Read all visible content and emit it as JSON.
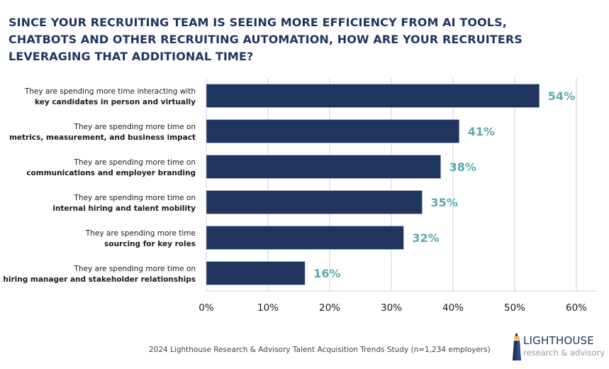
{
  "chart_data": {
    "type": "bar",
    "orientation": "horizontal",
    "title": "SINCE YOUR RECRUITING TEAM IS SEEING MORE EFFICIENCY FROM AI TOOLS, CHATBOTS AND OTHER RECRUITING AUTOMATION, HOW ARE YOUR RECRUITERS LEVERAGING THAT ADDITIONAL TIME?",
    "title_lines": [
      "SINCE YOUR RECRUITING TEAM IS SEEING MORE EFFICIENCY FROM AI TOOLS,",
      "CHATBOTS AND OTHER RECRUITING AUTOMATION, HOW ARE YOUR RECRUITERS",
      "LEVERAGING THAT ADDITIONAL TIME?"
    ],
    "categories": [
      {
        "line1": "They are spending more time interacting with",
        "line2": "key candidates in person and virtually"
      },
      {
        "line1": "They are spending more time on",
        "line2": "metrics, measurement, and business impact"
      },
      {
        "line1": "They are spending more time on",
        "line2": "communications and employer branding"
      },
      {
        "line1": "They are spending more time on",
        "line2": "internal hiring and talent mobility"
      },
      {
        "line1": "They are spending more time",
        "line2": "sourcing for key roles"
      },
      {
        "line1": "They are spending more time on",
        "line2": "hiring manager and stakeholder relationships"
      }
    ],
    "values": [
      54,
      41,
      38,
      35,
      32,
      16
    ],
    "value_labels": [
      "54%",
      "41%",
      "38%",
      "35%",
      "32%",
      "16%"
    ],
    "xlabel": "",
    "ylabel": "",
    "xlim": [
      0,
      60
    ],
    "xticks": [
      0,
      10,
      20,
      30,
      40,
      50,
      60
    ],
    "xtick_labels": [
      "0%",
      "10%",
      "20%",
      "30%",
      "40%",
      "50%",
      "60%"
    ],
    "grid": true,
    "legend": "none",
    "colors": {
      "bar": "#1f3560",
      "value_label": "#5aa9b0",
      "grid": "#d0d0d0",
      "title": "#1f3560"
    }
  },
  "footer": {
    "source": "2024 Lighthouse Research & Advisory Talent Acquisition Trends Study (n=1,234 employers)"
  },
  "logo": {
    "icon": "lighthouse-icon",
    "name": "LIGHTHOUSE",
    "subtitle": "research & advisory"
  }
}
